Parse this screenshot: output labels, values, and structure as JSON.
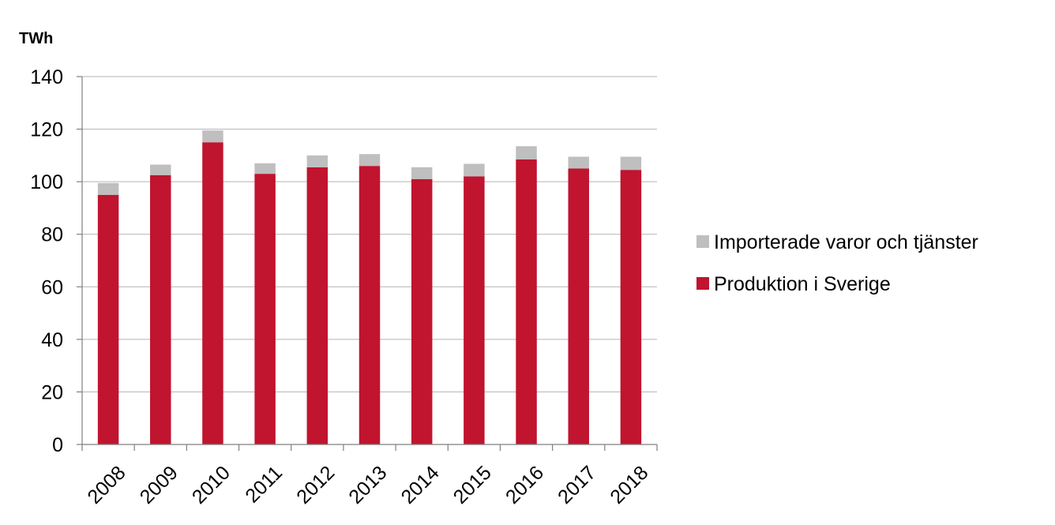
{
  "chart_data": {
    "type": "bar",
    "stacked": true,
    "title": "",
    "ylabel": "TWh",
    "xlabel": "",
    "ylim": [
      0,
      140
    ],
    "yticks": [
      0,
      20,
      40,
      60,
      80,
      100,
      120,
      140
    ],
    "grid": true,
    "legend_position": "right",
    "categories": [
      "2008",
      "2009",
      "2010",
      "2011",
      "2012",
      "2013",
      "2014",
      "2015",
      "2016",
      "2017",
      "2018"
    ],
    "series": [
      {
        "name": "Produktion i Sverige",
        "color": "#c0142f",
        "values": [
          95,
          102.5,
          115,
          103,
          105.5,
          106,
          101,
          102,
          108.5,
          105,
          104.5
        ]
      },
      {
        "name": "Importerade varor och tjänster",
        "color": "#bfbfbf",
        "values": [
          4.5,
          4,
          4.5,
          4,
          4.5,
          4.5,
          4.5,
          4.8,
          5,
          4.5,
          5
        ]
      }
    ],
    "legend_order": [
      "Importerade varor och tjänster",
      "Produktion i Sverige"
    ]
  }
}
